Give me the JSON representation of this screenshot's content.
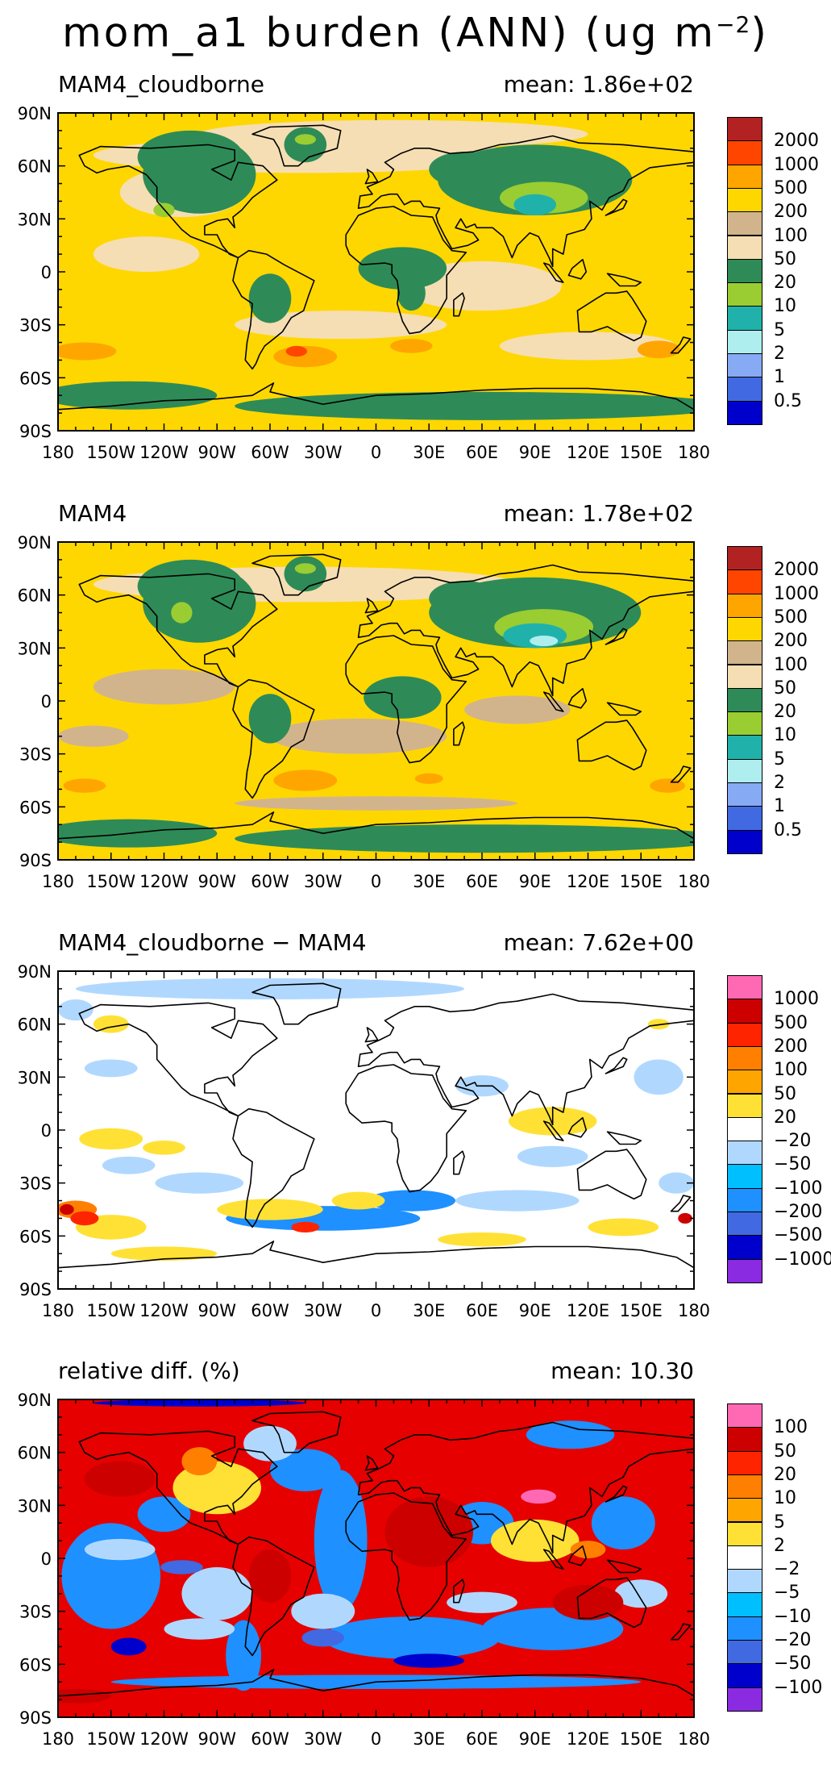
{
  "title": {
    "main": "mom_a1 burden (ANN) (ug m",
    "exp": "−2",
    "close": ")"
  },
  "axes": {
    "lat_labels": [
      "90N",
      "60N",
      "30N",
      "0",
      "30S",
      "60S",
      "90S"
    ],
    "lon_labels": [
      "180",
      "150W",
      "120W",
      "90W",
      "60W",
      "30W",
      "0",
      "30E",
      "60E",
      "90E",
      "120E",
      "150E",
      "180"
    ]
  },
  "panels": [
    {
      "left_title": "MAM4_cloudborne",
      "right_title": "mean: 1.86e+02",
      "background": "#ffd700",
      "legend_labels": [
        "2000",
        "1000",
        "500",
        "200",
        "100",
        "50",
        "20",
        "10",
        "5",
        "2",
        "1",
        "0.5"
      ],
      "legend_colors": [
        "#b22222",
        "#ff4500",
        "#ffa500",
        "#ffd700",
        "#d2b48c",
        "#f5deb3",
        "#2e8b57",
        "#9acd32",
        "#20b2aa",
        "#afeeee",
        "#87aaf5",
        "#4169e1",
        "#0000cd"
      ]
    },
    {
      "left_title": "MAM4",
      "right_title": "mean: 1.78e+02",
      "background": "#ffd700",
      "legend_labels": [
        "2000",
        "1000",
        "500",
        "200",
        "100",
        "50",
        "20",
        "10",
        "5",
        "2",
        "1",
        "0.5"
      ],
      "legend_colors": [
        "#b22222",
        "#ff4500",
        "#ffa500",
        "#ffd700",
        "#d2b48c",
        "#f5deb3",
        "#2e8b57",
        "#9acd32",
        "#20b2aa",
        "#afeeee",
        "#87aaf5",
        "#4169e1",
        "#0000cd"
      ]
    },
    {
      "left_title": "MAM4_cloudborne − MAM4",
      "right_title": "mean: 7.62e+00",
      "background": "#ffffff",
      "legend_labels": [
        "1000",
        "500",
        "200",
        "100",
        "50",
        "20",
        "−20",
        "−50",
        "−100",
        "−200",
        "−500",
        "−1000"
      ],
      "legend_colors": [
        "#ff69b4",
        "#cd0000",
        "#ff2400",
        "#ff7f00",
        "#ffa500",
        "#ffe135",
        "#ffffff",
        "#b0d8ff",
        "#00bfff",
        "#1e90ff",
        "#4169e1",
        "#0000cd",
        "#8a2be2"
      ]
    },
    {
      "left_title": "relative diff. (%)",
      "right_title": "mean: 10.30",
      "background": "#e60000",
      "legend_labels": [
        "100",
        "50",
        "20",
        "10",
        "5",
        "2",
        "−2",
        "−5",
        "−10",
        "−20",
        "−50",
        "−100"
      ],
      "legend_colors": [
        "#ff69b4",
        "#cd0000",
        "#ff2400",
        "#ff7f00",
        "#ffa500",
        "#ffe135",
        "#ffffff",
        "#b0d8ff",
        "#00bfff",
        "#1e90ff",
        "#4169e1",
        "#0000cd",
        "#8a2be2"
      ]
    }
  ]
}
